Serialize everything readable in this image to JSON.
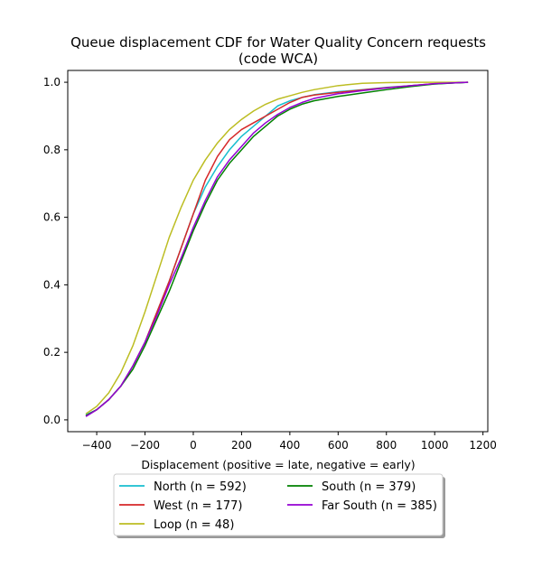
{
  "chart_data": {
    "type": "line",
    "title_line1": "Queue displacement CDF for Water Quality Concern  requests",
    "title_line2": "(code WCA)",
    "xlabel": "Displacement (positive = late, negative = early)",
    "ylabel": "",
    "xlim": [
      -520,
      1220
    ],
    "ylim": [
      -0.035,
      1.035
    ],
    "xticks": [
      -400,
      -200,
      0,
      200,
      400,
      600,
      800,
      1000,
      1200
    ],
    "yticks": [
      0.0,
      0.2,
      0.4,
      0.6,
      0.8,
      1.0
    ],
    "ytick_labels": [
      "0.0",
      "0.2",
      "0.4",
      "0.6",
      "0.8",
      "1.0"
    ],
    "grid": false,
    "legend_position": "below",
    "series": [
      {
        "name": "North (n = 592)",
        "color": "#17becf",
        "x": [
          -445,
          -400,
          -350,
          -300,
          -250,
          -200,
          -150,
          -100,
          -50,
          0,
          50,
          100,
          150,
          200,
          250,
          300,
          350,
          400,
          450,
          500,
          600,
          700,
          800,
          900,
          1000,
          1138
        ],
        "y": [
          0.015,
          0.03,
          0.06,
          0.1,
          0.16,
          0.23,
          0.32,
          0.41,
          0.51,
          0.61,
          0.69,
          0.75,
          0.8,
          0.84,
          0.87,
          0.9,
          0.93,
          0.945,
          0.955,
          0.963,
          0.972,
          0.978,
          0.985,
          0.99,
          0.995,
          1.0
        ]
      },
      {
        "name": "West (n = 177)",
        "color": "#d62728",
        "x": [
          -445,
          -400,
          -350,
          -300,
          -250,
          -200,
          -150,
          -100,
          -50,
          0,
          50,
          100,
          150,
          200,
          250,
          300,
          350,
          400,
          450,
          500,
          600,
          700,
          800,
          900,
          1000,
          1138
        ],
        "y": [
          0.012,
          0.03,
          0.06,
          0.1,
          0.16,
          0.23,
          0.32,
          0.41,
          0.51,
          0.61,
          0.71,
          0.78,
          0.83,
          0.86,
          0.88,
          0.9,
          0.92,
          0.94,
          0.955,
          0.962,
          0.97,
          0.977,
          0.984,
          0.99,
          0.996,
          1.0
        ]
      },
      {
        "name": "Loop (n = 48)",
        "color": "#bcbd22",
        "x": [
          -445,
          -400,
          -350,
          -300,
          -250,
          -200,
          -150,
          -100,
          -50,
          0,
          50,
          100,
          150,
          200,
          250,
          300,
          350,
          400,
          450,
          500,
          600,
          700,
          800,
          900,
          1000,
          1138
        ],
        "y": [
          0.018,
          0.04,
          0.08,
          0.14,
          0.22,
          0.32,
          0.43,
          0.54,
          0.63,
          0.71,
          0.77,
          0.82,
          0.86,
          0.89,
          0.915,
          0.935,
          0.95,
          0.96,
          0.97,
          0.978,
          0.99,
          0.997,
          0.999,
          1.0,
          1.0,
          1.0
        ]
      },
      {
        "name": "South (n = 379)",
        "color": "#008000",
        "x": [
          -445,
          -400,
          -350,
          -300,
          -250,
          -200,
          -150,
          -100,
          -50,
          0,
          50,
          100,
          150,
          200,
          250,
          300,
          350,
          400,
          450,
          500,
          600,
          700,
          800,
          900,
          1000,
          1138
        ],
        "y": [
          0.012,
          0.03,
          0.06,
          0.1,
          0.15,
          0.22,
          0.3,
          0.38,
          0.47,
          0.56,
          0.64,
          0.71,
          0.76,
          0.8,
          0.84,
          0.87,
          0.9,
          0.92,
          0.935,
          0.945,
          0.958,
          0.968,
          0.978,
          0.987,
          0.995,
          1.0
        ]
      },
      {
        "name": "Far South (n = 385)",
        "color": "#9400d3",
        "x": [
          -445,
          -400,
          -350,
          -300,
          -250,
          -200,
          -150,
          -100,
          -50,
          0,
          50,
          100,
          150,
          200,
          250,
          300,
          350,
          400,
          450,
          500,
          600,
          700,
          800,
          900,
          1000,
          1138
        ],
        "y": [
          0.01,
          0.03,
          0.06,
          0.1,
          0.16,
          0.23,
          0.31,
          0.4,
          0.48,
          0.57,
          0.65,
          0.72,
          0.77,
          0.81,
          0.85,
          0.88,
          0.905,
          0.925,
          0.94,
          0.952,
          0.966,
          0.975,
          0.983,
          0.99,
          0.996,
          1.0
        ]
      }
    ]
  }
}
